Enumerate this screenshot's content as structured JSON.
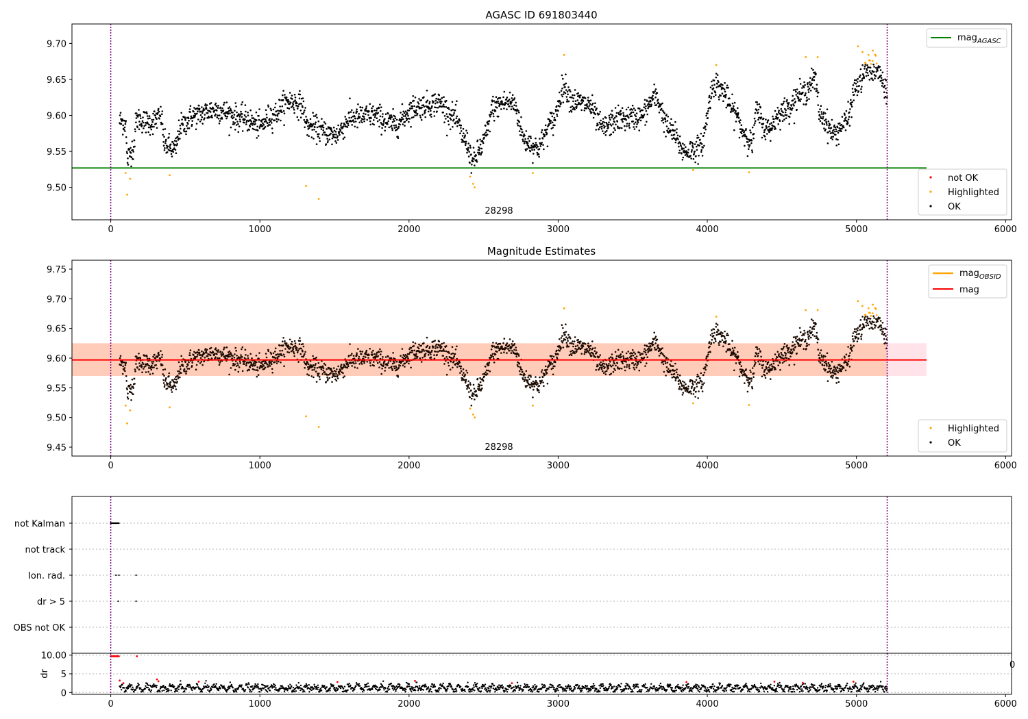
{
  "chart_data": [
    {
      "type": "scatter",
      "title": "AGASC ID 691803440",
      "xlim": [
        -260,
        6040
      ],
      "ylim": [
        9.455,
        9.727
      ],
      "xticks": [
        0,
        1000,
        2000,
        3000,
        4000,
        5000,
        6000
      ],
      "yticks": [
        9.5,
        9.55,
        9.6,
        9.65,
        9.7
      ],
      "vlines": [
        0,
        5206
      ],
      "annotation": {
        "text": "28298",
        "x": 2600
      },
      "lines": [
        {
          "name": "mag_AGASC",
          "label_main": "mag",
          "label_sub": "AGASC",
          "y": 9.527,
          "x_range": [
            -260,
            5470
          ],
          "color": "#008000"
        }
      ],
      "legend_points": [
        {
          "name": "not OK",
          "color": "#ff0000"
        },
        {
          "name": "Highlighted",
          "color": "#ffa500"
        },
        {
          "name": "OK",
          "color": "#000000"
        }
      ],
      "outliers": [
        {
          "x": 110,
          "y": 9.49
        },
        {
          "x": 130,
          "y": 9.512
        },
        {
          "x": 100,
          "y": 9.52
        },
        {
          "x": 395,
          "y": 9.517
        },
        {
          "x": 1310,
          "y": 9.502
        },
        {
          "x": 1395,
          "y": 9.484
        },
        {
          "x": 2410,
          "y": 9.515
        },
        {
          "x": 2430,
          "y": 9.505
        },
        {
          "x": 2440,
          "y": 9.5
        },
        {
          "x": 2830,
          "y": 9.52
        },
        {
          "x": 3905,
          "y": 9.524
        },
        {
          "x": 4280,
          "y": 9.521
        },
        {
          "x": 3040,
          "y": 9.684
        },
        {
          "x": 4060,
          "y": 9.67
        },
        {
          "x": 4660,
          "y": 9.681
        },
        {
          "x": 4740,
          "y": 9.681
        },
        {
          "x": 5010,
          "y": 9.696
        },
        {
          "x": 5040,
          "y": 9.688
        },
        {
          "x": 5110,
          "y": 9.69
        },
        {
          "x": 5130,
          "y": 9.683
        }
      ]
    },
    {
      "type": "scatter",
      "title": "Magnitude Estimates",
      "xlim": [
        -260,
        6040
      ],
      "ylim": [
        9.435,
        9.765
      ],
      "xticks": [
        0,
        1000,
        2000,
        3000,
        4000,
        5000,
        6000
      ],
      "yticks": [
        9.45,
        9.5,
        9.55,
        9.6,
        9.65,
        9.7,
        9.75
      ],
      "vlines": [
        0,
        5206
      ],
      "annotation": {
        "text": "28298",
        "x": 2600
      },
      "lines": [
        {
          "name": "mag_OBSID",
          "label_main": "mag",
          "label_sub": "OBSID",
          "color": "#ffa500"
        },
        {
          "name": "mag",
          "label_main": "mag",
          "label_sub": "",
          "y": 9.597,
          "x_range": [
            -260,
            5470
          ],
          "color": "#ff0000"
        }
      ],
      "bands": [
        {
          "y": [
            9.57,
            9.625
          ],
          "x_range": [
            -260,
            5470
          ],
          "color": "#ffc0cb"
        },
        {
          "y": [
            9.57,
            9.625
          ],
          "x_range": [
            -260,
            5206
          ],
          "color": "#ffa060"
        }
      ],
      "legend_points": [
        {
          "name": "Highlighted",
          "color": "#ffa500"
        },
        {
          "name": "OK",
          "color": "#000000"
        }
      ]
    },
    {
      "type": "scatter",
      "title": "",
      "xlim": [
        -260,
        6040
      ],
      "categories": [
        "not Kalman",
        "not track",
        "Ion. rad.",
        "dr > 5",
        "OBS not OK"
      ],
      "flag_points": [
        {
          "category": "not Kalman",
          "x": [
            0,
            55
          ]
        },
        {
          "category": "Ion. rad.",
          "x": [
            35,
            55,
            170
          ]
        },
        {
          "category": "dr > 5",
          "x": [
            50,
            170
          ]
        }
      ]
    },
    {
      "type": "line",
      "title": "",
      "ylabel": "dr",
      "xlim": [
        -260,
        6040
      ],
      "ylim": [
        -0.5,
        10.5
      ],
      "xticks": [
        0,
        1000,
        2000,
        3000,
        4000,
        5000,
        6000
      ],
      "yticks": [
        0,
        5,
        10
      ],
      "grid": true,
      "stray_tick_label": "0",
      "red_points": [
        {
          "x": 60,
          "y": 3.2
        },
        {
          "x": 85,
          "y": 2.5
        },
        {
          "x": 310,
          "y": 3.5
        },
        {
          "x": 320,
          "y": 3.0
        },
        {
          "x": 590,
          "y": 2.9
        },
        {
          "x": 1520,
          "y": 2.8
        },
        {
          "x": 2040,
          "y": 3.1
        },
        {
          "x": 2690,
          "y": 2.5
        },
        {
          "x": 3860,
          "y": 2.8
        },
        {
          "x": 4450,
          "y": 2.9
        },
        {
          "x": 4640,
          "y": 2.6
        },
        {
          "x": 4980,
          "y": 2.9
        },
        {
          "x": 175,
          "y": 9.7
        }
      ]
    }
  ]
}
